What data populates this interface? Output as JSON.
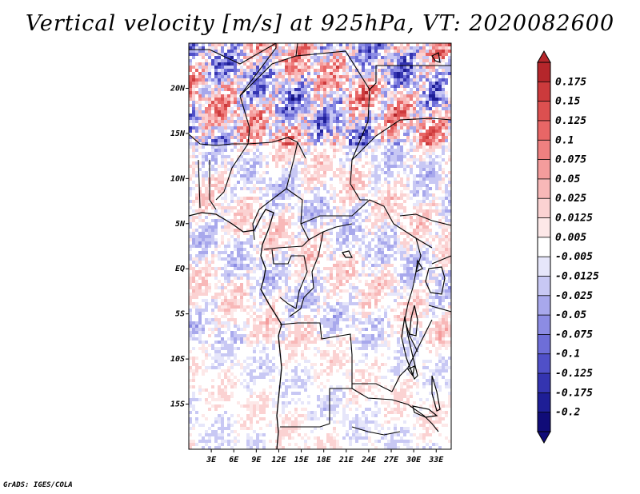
{
  "title": "Vertical velocity [m/s] at 925hPa, VT: 2020082600",
  "credit": "GrADS: IGES/COLA",
  "map": {
    "lat_labels": [
      "20N",
      "15N",
      "10N",
      "5N",
      "EQ",
      "5S",
      "10S",
      "15S"
    ],
    "lat_values": [
      20,
      15,
      10,
      5,
      0,
      -5,
      -10,
      -15
    ],
    "lon_labels": [
      "3E",
      "6E",
      "9E",
      "12E",
      "15E",
      "18E",
      "21E",
      "24E",
      "27E",
      "30E",
      "33E"
    ],
    "lon_values": [
      3,
      6,
      9,
      12,
      15,
      18,
      21,
      24,
      27,
      30,
      33
    ],
    "lon_range": [
      0,
      35
    ],
    "lat_range": [
      -20,
      25
    ]
  },
  "colorbar": {
    "labels": [
      "0.175",
      "0.15",
      "0.125",
      "0.1",
      "0.075",
      "0.05",
      "0.025",
      "0.0125",
      "0.005",
      "-0.005",
      "-0.0125",
      "-0.025",
      "-0.05",
      "-0.075",
      "-0.1",
      "-0.125",
      "-0.175",
      "-0.2"
    ],
    "colors": [
      "#b5262b",
      "#cc3a3c",
      "#dc5050",
      "#e86666",
      "#ef8080",
      "#f49c9c",
      "#f8b8b8",
      "#fbd2d2",
      "#fde8e8",
      "#ffffff",
      "#e6e6fa",
      "#c8c8f4",
      "#a8a8ec",
      "#8c8ce4",
      "#6e6ed8",
      "#5050c8",
      "#3434b0",
      "#1e1e96",
      "#100c78"
    ]
  }
}
